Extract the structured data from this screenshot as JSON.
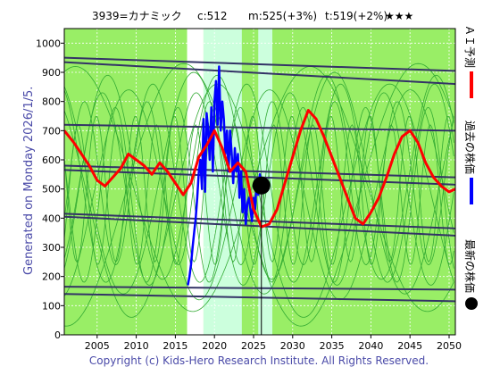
{
  "header": {
    "ticker": "3939=カナミック",
    "current": "c:512",
    "medium": "m:525(+3%)",
    "target": "t:519(+2%)",
    "stars": "★★★"
  },
  "side_label": "Generated on Monday 2026/1/5.",
  "footer": "Copyright (c) Kids-Hero Research Institute. All Rights Reserved.",
  "colors": {
    "background": "#99ee66",
    "past_price": "#0000ff",
    "forecast": "#ff0000",
    "trend": "#333366",
    "cycle": "#33aa33",
    "highlight_band": "#ccffdd",
    "white_band": "#ffffff"
  },
  "chart_data": {
    "type": "line",
    "title": "",
    "xlabel": "",
    "ylabel": "",
    "xlim": [
      2000.8,
      2050.8
    ],
    "ylim": [
      0,
      1050
    ],
    "x_ticks": [
      2005,
      2010,
      2015,
      2020,
      2025,
      2030,
      2035,
      2040,
      2045,
      2050
    ],
    "y_ticks": [
      0,
      100,
      200,
      300,
      400,
      500,
      600,
      700,
      800,
      900,
      1000
    ],
    "grid": true,
    "legend": [
      {
        "label": "ＡＩ予測",
        "color": "#ff0000",
        "marker": "line"
      },
      {
        "label": "過去の株価",
        "color": "#0000ff",
        "marker": "line"
      },
      {
        "label": "最新の株価",
        "color": "#000000",
        "marker": "dot"
      }
    ],
    "legend_placement": "right-vertical",
    "latest_point": {
      "x": 2026.0,
      "y": 512
    },
    "bands": [
      {
        "from": 2016.5,
        "to": 2018.6,
        "kind": "white"
      },
      {
        "from": 2018.6,
        "to": 2023.5,
        "kind": "light"
      },
      {
        "from": 2025.6,
        "to": 2027.4,
        "kind": "light"
      }
    ],
    "trend_lines": [
      {
        "x": [
          2000.8,
          2050.8
        ],
        "y": [
          950,
          905
        ]
      },
      {
        "x": [
          2000.8,
          2050.8
        ],
        "y": [
          935,
          860
        ]
      },
      {
        "x": [
          2000.8,
          2050.8
        ],
        "y": [
          720,
          700
        ]
      },
      {
        "x": [
          2000.8,
          2050.8
        ],
        "y": [
          580,
          540
        ]
      },
      {
        "x": [
          2000.8,
          2050.8
        ],
        "y": [
          565,
          515
        ]
      },
      {
        "x": [
          2000.8,
          2050.8
        ],
        "y": [
          415,
          365
        ]
      },
      {
        "x": [
          2000.8,
          2050.8
        ],
        "y": [
          405,
          340
        ]
      },
      {
        "x": [
          2000.8,
          2050.8
        ],
        "y": [
          165,
          155
        ]
      },
      {
        "x": [
          2000.8,
          2050.8
        ],
        "y": [
          140,
          115
        ]
      }
    ],
    "series": [
      {
        "name": "過去の株価",
        "color": "#0000ff",
        "x": [
          2016.6,
          2016.8,
          2017.0,
          2017.2,
          2017.4,
          2017.6,
          2017.8,
          2018.0,
          2018.2,
          2018.4,
          2018.6,
          2018.8,
          2019.0,
          2019.2,
          2019.4,
          2019.6,
          2019.8,
          2020.0,
          2020.2,
          2020.4,
          2020.6,
          2020.8,
          2021.0,
          2021.2,
          2021.4,
          2021.6,
          2021.8,
          2022.0,
          2022.2,
          2022.4,
          2022.6,
          2022.8,
          2023.0,
          2023.2,
          2023.4,
          2023.6,
          2023.8,
          2024.0,
          2024.2,
          2024.4,
          2024.6,
          2024.8,
          2025.0,
          2025.2,
          2025.4,
          2025.6,
          2025.8,
          2026.0
        ],
        "y": [
          170,
          200,
          240,
          300,
          350,
          400,
          470,
          560,
          600,
          500,
          740,
          490,
          760,
          700,
          600,
          780,
          560,
          800,
          870,
          720,
          920,
          700,
          800,
          740,
          620,
          700,
          560,
          700,
          620,
          520,
          640,
          560,
          620,
          470,
          560,
          420,
          500,
          380,
          450,
          470,
          430,
          390,
          470,
          430,
          530,
          480,
          550,
          512
        ]
      },
      {
        "name": "ＡＩ予測",
        "color": "#ff0000",
        "x": [
          2000.8,
          2002.0,
          2003.0,
          2004.0,
          2005.0,
          2006.0,
          2007.0,
          2008.0,
          2009.0,
          2010.0,
          2011.0,
          2012.0,
          2013.0,
          2014.0,
          2015.0,
          2016.0,
          2017.0,
          2018.0,
          2019.0,
          2020.0,
          2021.0,
          2022.0,
          2023.0,
          2024.0,
          2025.0,
          2026.0,
          2027.0,
          2028.0,
          2029.0,
          2030.0,
          2031.0,
          2032.0,
          2033.0,
          2034.0,
          2035.0,
          2036.0,
          2037.0,
          2038.0,
          2039.0,
          2040.0,
          2041.0,
          2042.0,
          2043.0,
          2044.0,
          2045.0,
          2046.0,
          2047.0,
          2048.0,
          2049.0,
          2050.0,
          2050.8
        ],
        "y": [
          700,
          660,
          620,
          580,
          530,
          510,
          540,
          570,
          620,
          600,
          580,
          550,
          590,
          560,
          520,
          480,
          520,
          610,
          650,
          700,
          640,
          560,
          590,
          560,
          430,
          370,
          380,
          430,
          520,
          610,
          700,
          770,
          740,
          680,
          610,
          540,
          470,
          400,
          380,
          420,
          470,
          540,
          620,
          680,
          700,
          660,
          590,
          540,
          510,
          490,
          500
        ]
      }
    ],
    "cycle_lines": [
      {
        "period": 30,
        "amp": 450,
        "base": 480,
        "phase": 0.3
      },
      {
        "period": 30,
        "amp": 420,
        "base": 500,
        "phase": 3.2
      },
      {
        "period": 18,
        "amp": 380,
        "base": 520,
        "phase": 1.1
      },
      {
        "period": 18,
        "amp": 360,
        "base": 480,
        "phase": 4.0
      },
      {
        "period": 12,
        "amp": 330,
        "base": 500,
        "phase": 0.7
      },
      {
        "period": 12,
        "amp": 340,
        "base": 520,
        "phase": 3.6
      },
      {
        "period": 8,
        "amp": 300,
        "base": 480,
        "phase": 2.1
      },
      {
        "period": 8,
        "amp": 280,
        "base": 520,
        "phase": 5.2
      },
      {
        "period": 5,
        "amp": 250,
        "base": 500,
        "phase": 1.7
      },
      {
        "period": 5,
        "amp": 240,
        "base": 480,
        "phase": 4.6
      },
      {
        "period": 22,
        "amp": 400,
        "base": 460,
        "phase": 2.6
      },
      {
        "period": 14,
        "amp": 350,
        "base": 540,
        "phase": 5.9
      }
    ]
  }
}
